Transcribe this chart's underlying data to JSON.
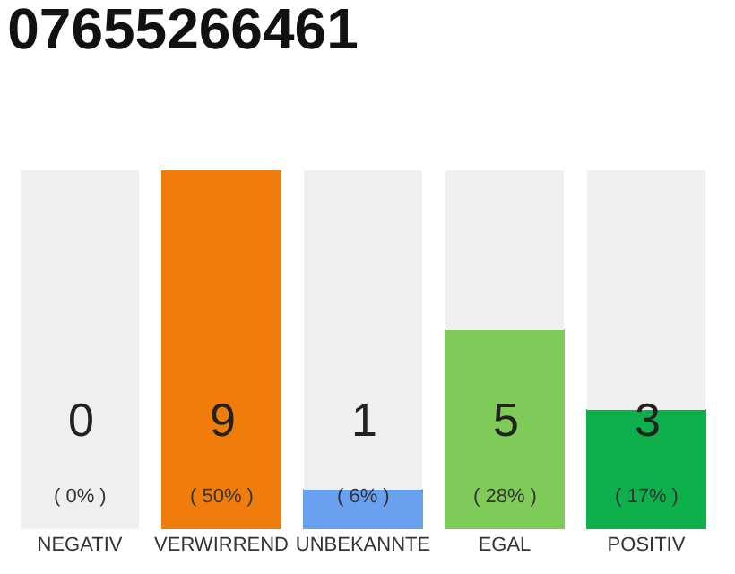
{
  "chart_data": {
    "type": "bar",
    "title": "07655266461",
    "categories": [
      "NEGATIV",
      "VERWIRREND",
      "UNBEKANNTE",
      "EGAL",
      "POSITIV"
    ],
    "stacked": true,
    "series": [
      {
        "colors": [
          "#555555",
          "#f07d0b",
          "#6aa0f0",
          "#7ecb5a",
          "#0db04b"
        ],
        "values": [
          0,
          9,
          1,
          5,
          3
        ],
        "value_labels": [
          "0",
          "9",
          "1",
          "5",
          "3"
        ]
      },
      {
        "color": "#efefef",
        "values": [
          9,
          0,
          8,
          4,
          6
        ]
      }
    ],
    "tick_labels": "x",
    "annotations": [
      "( 0% )",
      "( 50% )",
      "( 6% )",
      "( 28% )",
      "( 17% )"
    ]
  }
}
